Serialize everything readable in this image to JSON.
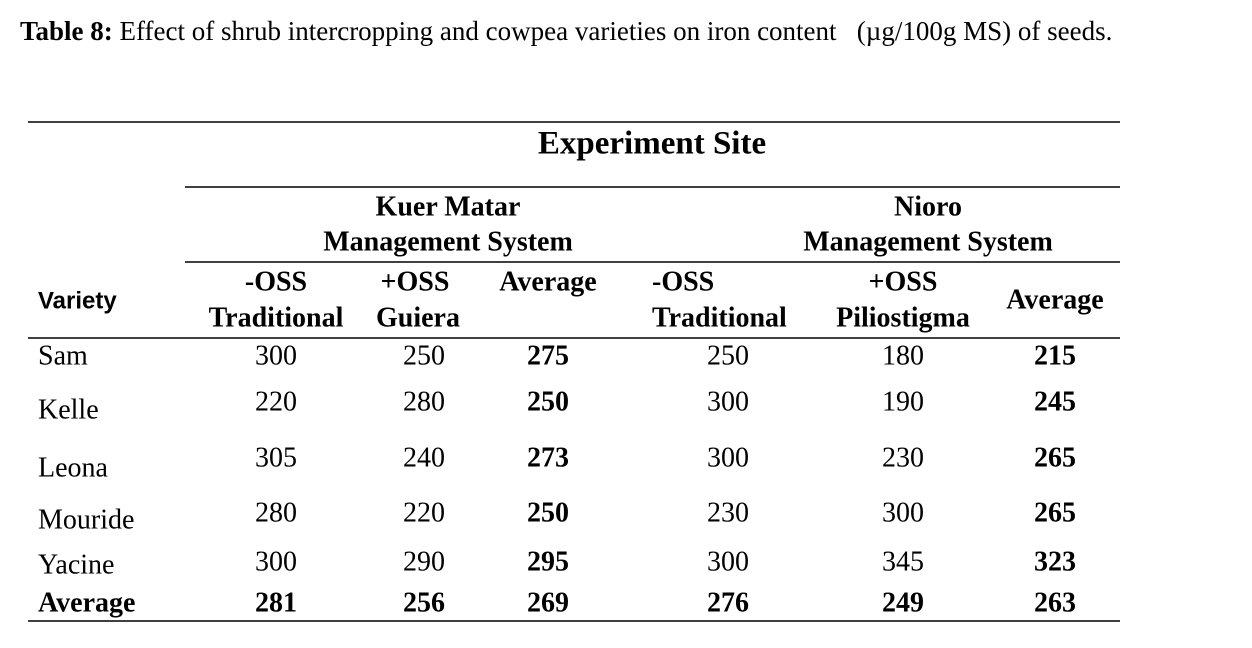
{
  "caption": {
    "label": "Table 8:",
    "text": "Effect of shrub intercropping and cowpea varieties on iron content   (µg/100g MS) of seeds."
  },
  "table": {
    "title": "Experiment Site",
    "row_header": "Variety",
    "groups": [
      {
        "name": "Kuer Matar",
        "subtitle": "Management System",
        "columns": [
          [
            "-OSS",
            "Traditional"
          ],
          [
            "+OSS",
            "Guiera"
          ],
          [
            "Average"
          ]
        ]
      },
      {
        "name": "Nioro",
        "subtitle": "Management System",
        "columns": [
          [
            "-OSS",
            "Traditional"
          ],
          [
            "+OSS",
            "Piliostigma"
          ],
          [
            "Average"
          ]
        ]
      }
    ],
    "rows": [
      {
        "name": "Sam",
        "values": [
          300,
          250,
          275,
          250,
          180,
          215
        ]
      },
      {
        "name": "Kelle",
        "values": [
          220,
          280,
          250,
          300,
          190,
          245
        ]
      },
      {
        "name": "Leona",
        "values": [
          305,
          240,
          273,
          300,
          230,
          265
        ]
      },
      {
        "name": "Mouride",
        "values": [
          280,
          220,
          250,
          230,
          300,
          265
        ]
      },
      {
        "name": "Yacine",
        "values": [
          300,
          290,
          295,
          300,
          345,
          323
        ]
      },
      {
        "name": "Average",
        "values": [
          281,
          256,
          269,
          276,
          249,
          263
        ]
      }
    ]
  }
}
